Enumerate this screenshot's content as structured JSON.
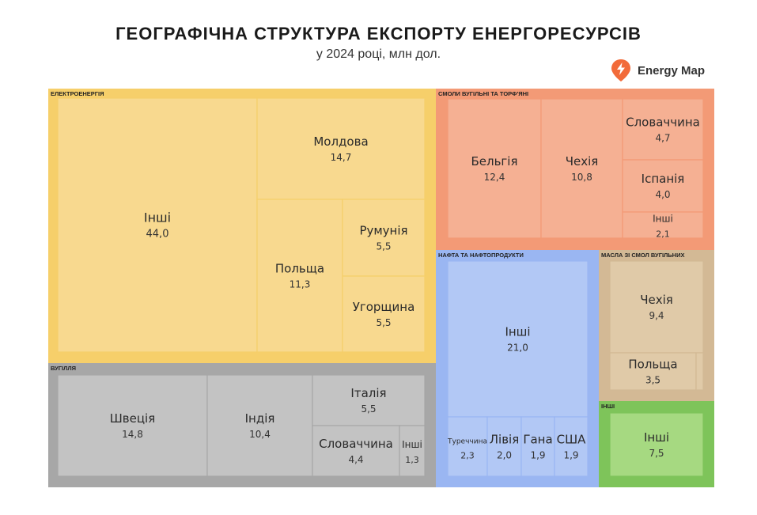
{
  "header": {
    "title": "ГЕОГРАФІЧНА СТРУКТУРА ЕКСПОРТУ ЕНЕРГОРЕСУРСІВ",
    "subtitle": "у 2024 році, млн дол."
  },
  "brand": {
    "name": "Energy Map",
    "icon": "lightning-pin-icon",
    "color": "#f26b3a"
  },
  "chart_data": {
    "type": "treemap",
    "unit": "млн дол.",
    "groups": [
      {
        "name": "ЕЛЕКТРОЕНЕРГІЯ",
        "color": "#f6cf6a",
        "tile_color": "#f8d98f",
        "items": [
          {
            "label": "Інші",
            "value": "44,0"
          },
          {
            "label": "Молдова",
            "value": "14,7"
          },
          {
            "label": "Польща",
            "value": "11,3"
          },
          {
            "label": "Румунія",
            "value": "5,5"
          },
          {
            "label": "Угорщина",
            "value": "5,5"
          }
        ]
      },
      {
        "name": "ВУГІЛЛЯ",
        "color": "#a7a7a7",
        "tile_color": "#c3c3c3",
        "items": [
          {
            "label": "Швеція",
            "value": "14,8"
          },
          {
            "label": "Індія",
            "value": "10,4"
          },
          {
            "label": "Італія",
            "value": "5,5"
          },
          {
            "label": "Словаччина",
            "value": "4,4"
          },
          {
            "label": "Інші",
            "value": "1,3"
          }
        ]
      },
      {
        "name": "СМОЛИ ВУГІЛЬНІ ТА ТОРФ'ЯНІ",
        "color": "#f39a76",
        "tile_color": "#f5b093",
        "items": [
          {
            "label": "Бельгія",
            "value": "12,4"
          },
          {
            "label": "Чехія",
            "value": "10,8"
          },
          {
            "label": "Словаччина",
            "value": "4,7"
          },
          {
            "label": "Іспанія",
            "value": "4,0"
          },
          {
            "label": "Інші",
            "value": "2,1"
          }
        ]
      },
      {
        "name": "НАФТА ТА НАФТОПРОДУКТИ",
        "color": "#9ab6f2",
        "tile_color": "#b2c8f5",
        "items": [
          {
            "label": "Інші",
            "value": "21,0"
          },
          {
            "label": "Туреччина",
            "value": "2,3"
          },
          {
            "label": "Лівія",
            "value": "2,0"
          },
          {
            "label": "Гана",
            "value": "1,9"
          },
          {
            "label": "США",
            "value": "1,9"
          }
        ]
      },
      {
        "name": "МАСЛА ЗІ СМОЛ ВУГІЛЬНИХ",
        "color": "#d3b995",
        "tile_color": "#e0caa8",
        "items": [
          {
            "label": "Чехія",
            "value": "9,4"
          },
          {
            "label": "Польща",
            "value": "3,5"
          },
          {
            "label": "",
            "value": ""
          }
        ]
      },
      {
        "name": "ІНШІ",
        "color": "#7ec45a",
        "tile_color": "#a6d981",
        "items": [
          {
            "label": "Інші",
            "value": "7,5"
          }
        ]
      }
    ]
  }
}
